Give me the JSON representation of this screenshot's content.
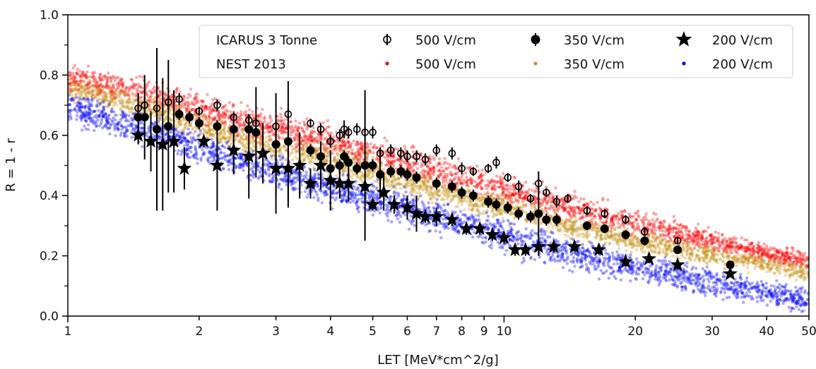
{
  "chart_data": {
    "type": "scatter",
    "xlabel": "LET [MeV*cm^2/g]",
    "ylabel": "R = 1 - r",
    "xscale": "log",
    "xlim": [
      1,
      50
    ],
    "ylim": [
      0.0,
      1.0
    ],
    "xticks": [
      1,
      2,
      3,
      4,
      5,
      6,
      7,
      8,
      9,
      10,
      20,
      30,
      40,
      50
    ],
    "xtick_labels": [
      "1",
      "2",
      "3",
      "4",
      "5",
      "6",
      "7",
      "8",
      "9",
      "10",
      "20",
      "30",
      "40",
      "50"
    ],
    "yticks": [
      0.0,
      0.2,
      0.4,
      0.6,
      0.8,
      1.0
    ],
    "ytick_labels": [
      "0.0",
      "0.2",
      "0.4",
      "0.6",
      "0.8",
      "1.0"
    ],
    "grid": false,
    "legend_placement": "top-right",
    "legend": {
      "row_labels": [
        "ICARUS 3 Tonne",
        "NEST 2013"
      ],
      "icarus": [
        {
          "label": "500 V/cm",
          "marker": "open-circle"
        },
        {
          "label": "350 V/cm",
          "marker": "filled-circle"
        },
        {
          "label": "200 V/cm",
          "marker": "star"
        }
      ],
      "nest": [
        {
          "label": "500 V/cm",
          "color": "#ff0000"
        },
        {
          "label": "350 V/cm",
          "color": "#c8961e"
        },
        {
          "label": "200 V/cm",
          "color": "#0000ff"
        }
      ]
    },
    "nest_bands": [
      {
        "name": "500 V/cm",
        "color": "#ff0000",
        "x": [
          1.0,
          1.5,
          2,
          3,
          4,
          5,
          7,
          10,
          15,
          20,
          30,
          40,
          50
        ],
        "center": [
          0.79,
          0.74,
          0.68,
          0.62,
          0.58,
          0.54,
          0.48,
          0.42,
          0.35,
          0.31,
          0.25,
          0.21,
          0.18
        ],
        "spread": [
          0.04,
          0.05,
          0.05,
          0.05,
          0.05,
          0.05,
          0.05,
          0.05,
          0.04,
          0.04,
          0.035,
          0.03,
          0.03
        ]
      },
      {
        "name": "350 V/cm",
        "color": "#c8961e",
        "x": [
          1.0,
          1.5,
          2,
          3,
          4,
          5,
          7,
          10,
          15,
          20,
          30,
          40,
          50
        ],
        "center": [
          0.76,
          0.69,
          0.63,
          0.56,
          0.52,
          0.48,
          0.42,
          0.36,
          0.29,
          0.25,
          0.2,
          0.17,
          0.14
        ],
        "spread": [
          0.04,
          0.04,
          0.04,
          0.045,
          0.045,
          0.045,
          0.04,
          0.04,
          0.035,
          0.035,
          0.03,
          0.03,
          0.03
        ]
      },
      {
        "name": "200 V/cm",
        "color": "#0000ff",
        "x": [
          1.0,
          1.5,
          2,
          3,
          4,
          5,
          7,
          10,
          15,
          20,
          30,
          40,
          50
        ],
        "center": [
          0.69,
          0.62,
          0.56,
          0.48,
          0.43,
          0.39,
          0.33,
          0.27,
          0.2,
          0.16,
          0.11,
          0.08,
          0.05
        ],
        "spread": [
          0.05,
          0.05,
          0.05,
          0.05,
          0.05,
          0.05,
          0.05,
          0.05,
          0.05,
          0.045,
          0.045,
          0.04,
          0.04
        ]
      }
    ],
    "series": [
      {
        "name": "500 V/cm",
        "marker": "open-circle",
        "points": [
          {
            "x": 1.45,
            "y": 0.69,
            "err": 0.05
          },
          {
            "x": 1.5,
            "y": 0.7,
            "err": 0.03
          },
          {
            "x": 1.6,
            "y": 0.69,
            "err": 0.03
          },
          {
            "x": 1.7,
            "y": 0.71,
            "err": 0.02
          },
          {
            "x": 1.8,
            "y": 0.72,
            "err": 0.02
          },
          {
            "x": 2.0,
            "y": 0.68,
            "err": 0.015
          },
          {
            "x": 2.2,
            "y": 0.7,
            "err": 0.02
          },
          {
            "x": 2.4,
            "y": 0.66,
            "err": 0.02
          },
          {
            "x": 2.6,
            "y": 0.65,
            "err": 0.02
          },
          {
            "x": 2.7,
            "y": 0.64,
            "err": 0.02
          },
          {
            "x": 3.0,
            "y": 0.63,
            "err": 0.02
          },
          {
            "x": 3.2,
            "y": 0.67,
            "err": 0.02
          },
          {
            "x": 3.6,
            "y": 0.64,
            "err": 0.015
          },
          {
            "x": 3.8,
            "y": 0.62,
            "err": 0.02
          },
          {
            "x": 4.0,
            "y": 0.58,
            "err": 0.02
          },
          {
            "x": 4.2,
            "y": 0.6,
            "err": 0.02
          },
          {
            "x": 4.3,
            "y": 0.62,
            "err": 0.03
          },
          {
            "x": 4.4,
            "y": 0.61,
            "err": 0.02
          },
          {
            "x": 4.6,
            "y": 0.62,
            "err": 0.02
          },
          {
            "x": 4.8,
            "y": 0.61,
            "err": 0.02
          },
          {
            "x": 5.0,
            "y": 0.61,
            "err": 0.02
          },
          {
            "x": 5.2,
            "y": 0.54,
            "err": 0.02
          },
          {
            "x": 5.5,
            "y": 0.55,
            "err": 0.02
          },
          {
            "x": 5.8,
            "y": 0.54,
            "err": 0.02
          },
          {
            "x": 6.0,
            "y": 0.53,
            "err": 0.02
          },
          {
            "x": 6.3,
            "y": 0.53,
            "err": 0.02
          },
          {
            "x": 6.6,
            "y": 0.52,
            "err": 0.02
          },
          {
            "x": 7.0,
            "y": 0.55,
            "err": 0.02
          },
          {
            "x": 7.6,
            "y": 0.54,
            "err": 0.02
          },
          {
            "x": 8.0,
            "y": 0.49,
            "err": 0.02
          },
          {
            "x": 8.5,
            "y": 0.48,
            "err": 0.015
          },
          {
            "x": 9.2,
            "y": 0.49,
            "err": 0.015
          },
          {
            "x": 9.6,
            "y": 0.51,
            "err": 0.02
          },
          {
            "x": 10.2,
            "y": 0.46,
            "err": 0.015
          },
          {
            "x": 10.8,
            "y": 0.43,
            "err": 0.02
          },
          {
            "x": 11.5,
            "y": 0.39,
            "err": 0.015
          },
          {
            "x": 12.0,
            "y": 0.44,
            "err": 0.02
          },
          {
            "x": 12.5,
            "y": 0.41,
            "err": 0.015
          },
          {
            "x": 13.2,
            "y": 0.38,
            "err": 0.02
          },
          {
            "x": 14.0,
            "y": 0.39,
            "err": 0.015
          },
          {
            "x": 15.5,
            "y": 0.35,
            "err": 0.015
          },
          {
            "x": 17.0,
            "y": 0.34,
            "err": 0.015
          },
          {
            "x": 19.0,
            "y": 0.32,
            "err": 0.015
          },
          {
            "x": 21.0,
            "y": 0.28,
            "err": 0.015
          },
          {
            "x": 25.0,
            "y": 0.25,
            "err": 0.01
          }
        ]
      },
      {
        "name": "350 V/cm",
        "marker": "filled-circle",
        "points": [
          {
            "x": 1.45,
            "y": 0.66,
            "err": 0.08
          },
          {
            "x": 1.5,
            "y": 0.66,
            "err": 0.14
          },
          {
            "x": 1.6,
            "y": 0.62,
            "err": 0.27
          },
          {
            "x": 1.7,
            "y": 0.63,
            "err": 0.22
          },
          {
            "x": 1.8,
            "y": 0.67,
            "err": 0.02
          },
          {
            "x": 1.9,
            "y": 0.66,
            "err": 0.02
          },
          {
            "x": 2.0,
            "y": 0.64,
            "err": 0.02
          },
          {
            "x": 2.2,
            "y": 0.63,
            "err": 0.02
          },
          {
            "x": 2.4,
            "y": 0.62,
            "err": 0.02
          },
          {
            "x": 2.6,
            "y": 0.62,
            "err": 0.02
          },
          {
            "x": 2.7,
            "y": 0.61,
            "err": 0.15
          },
          {
            "x": 3.0,
            "y": 0.57,
            "err": 0.17
          },
          {
            "x": 3.2,
            "y": 0.58,
            "err": 0.2
          },
          {
            "x": 3.6,
            "y": 0.55,
            "err": 0.02
          },
          {
            "x": 3.8,
            "y": 0.53,
            "err": 0.02
          },
          {
            "x": 4.0,
            "y": 0.49,
            "err": 0.02
          },
          {
            "x": 4.2,
            "y": 0.5,
            "err": 0.02
          },
          {
            "x": 4.3,
            "y": 0.53,
            "err": 0.02
          },
          {
            "x": 4.4,
            "y": 0.51,
            "err": 0.02
          },
          {
            "x": 4.6,
            "y": 0.49,
            "err": 0.02
          },
          {
            "x": 4.8,
            "y": 0.5,
            "err": 0.25
          },
          {
            "x": 5.0,
            "y": 0.5,
            "err": 0.02
          },
          {
            "x": 5.2,
            "y": 0.47,
            "err": 0.08
          },
          {
            "x": 5.5,
            "y": 0.48,
            "err": 0.02
          },
          {
            "x": 5.8,
            "y": 0.48,
            "err": 0.02
          },
          {
            "x": 6.0,
            "y": 0.47,
            "err": 0.02
          },
          {
            "x": 6.3,
            "y": 0.46,
            "err": 0.02
          },
          {
            "x": 7.0,
            "y": 0.44,
            "err": 0.02
          },
          {
            "x": 7.6,
            "y": 0.43,
            "err": 0.02
          },
          {
            "x": 8.0,
            "y": 0.41,
            "err": 0.02
          },
          {
            "x": 8.5,
            "y": 0.4,
            "err": 0.02
          },
          {
            "x": 9.2,
            "y": 0.38,
            "err": 0.02
          },
          {
            "x": 9.6,
            "y": 0.37,
            "err": 0.02
          },
          {
            "x": 10.2,
            "y": 0.36,
            "err": 0.02
          },
          {
            "x": 10.8,
            "y": 0.34,
            "err": 0.02
          },
          {
            "x": 11.5,
            "y": 0.33,
            "err": 0.02
          },
          {
            "x": 12.0,
            "y": 0.34,
            "err": 0.14
          },
          {
            "x": 12.5,
            "y": 0.32,
            "err": 0.02
          },
          {
            "x": 13.2,
            "y": 0.32,
            "err": 0.02
          },
          {
            "x": 15.5,
            "y": 0.3,
            "err": 0.015
          },
          {
            "x": 17.0,
            "y": 0.29,
            "err": 0.015
          },
          {
            "x": 19.0,
            "y": 0.27,
            "err": 0.015
          },
          {
            "x": 21.0,
            "y": 0.25,
            "err": 0.015
          },
          {
            "x": 25.0,
            "y": 0.22,
            "err": 0.01
          },
          {
            "x": 33.0,
            "y": 0.17,
            "err": 0.01
          }
        ]
      },
      {
        "name": "200 V/cm",
        "marker": "star",
        "points": [
          {
            "x": 1.45,
            "y": 0.6,
            "err": 0.03
          },
          {
            "x": 1.55,
            "y": 0.58,
            "err": 0.1
          },
          {
            "x": 1.65,
            "y": 0.57,
            "err": 0.22
          },
          {
            "x": 1.75,
            "y": 0.58,
            "err": 0.17
          },
          {
            "x": 1.85,
            "y": 0.49,
            "err": 0.07
          },
          {
            "x": 2.05,
            "y": 0.58,
            "err": 0.02
          },
          {
            "x": 2.2,
            "y": 0.5,
            "err": 0.15
          },
          {
            "x": 2.4,
            "y": 0.55,
            "err": 0.08
          },
          {
            "x": 2.6,
            "y": 0.53,
            "err": 0.14
          },
          {
            "x": 2.8,
            "y": 0.54,
            "err": 0.1
          },
          {
            "x": 3.0,
            "y": 0.49,
            "err": 0.15
          },
          {
            "x": 3.2,
            "y": 0.49,
            "err": 0.13
          },
          {
            "x": 3.4,
            "y": 0.5,
            "err": 0.11
          },
          {
            "x": 3.6,
            "y": 0.44,
            "err": 0.05
          },
          {
            "x": 3.8,
            "y": 0.5,
            "err": 0.08
          },
          {
            "x": 4.0,
            "y": 0.45,
            "err": 0.1
          },
          {
            "x": 4.2,
            "y": 0.44,
            "err": 0.05
          },
          {
            "x": 4.4,
            "y": 0.44,
            "err": 0.06
          },
          {
            "x": 4.8,
            "y": 0.43,
            "err": 0.05
          },
          {
            "x": 5.0,
            "y": 0.37,
            "err": 0.02
          },
          {
            "x": 5.3,
            "y": 0.41,
            "err": 0.06
          },
          {
            "x": 5.6,
            "y": 0.37,
            "err": 0.03
          },
          {
            "x": 6.0,
            "y": 0.36,
            "err": 0.04
          },
          {
            "x": 6.3,
            "y": 0.34,
            "err": 0.06
          },
          {
            "x": 6.6,
            "y": 0.33,
            "err": 0.02
          },
          {
            "x": 7.0,
            "y": 0.33,
            "err": 0.03
          },
          {
            "x": 7.6,
            "y": 0.32,
            "err": 0.02
          },
          {
            "x": 8.2,
            "y": 0.29,
            "err": 0.02
          },
          {
            "x": 8.8,
            "y": 0.29,
            "err": 0.02
          },
          {
            "x": 9.4,
            "y": 0.27,
            "err": 0.02
          },
          {
            "x": 10.0,
            "y": 0.26,
            "err": 0.02
          },
          {
            "x": 10.6,
            "y": 0.22,
            "err": 0.02
          },
          {
            "x": 11.2,
            "y": 0.22,
            "err": 0.02
          },
          {
            "x": 12.0,
            "y": 0.23,
            "err": 0.02
          },
          {
            "x": 13.0,
            "y": 0.23,
            "err": 0.02
          },
          {
            "x": 14.5,
            "y": 0.23,
            "err": 0.015
          },
          {
            "x": 16.5,
            "y": 0.22,
            "err": 0.015
          },
          {
            "x": 19.0,
            "y": 0.18,
            "err": 0.015
          },
          {
            "x": 21.5,
            "y": 0.19,
            "err": 0.015
          },
          {
            "x": 25.0,
            "y": 0.17,
            "err": 0.015
          },
          {
            "x": 33.0,
            "y": 0.14,
            "err": 0.01
          }
        ]
      }
    ]
  }
}
